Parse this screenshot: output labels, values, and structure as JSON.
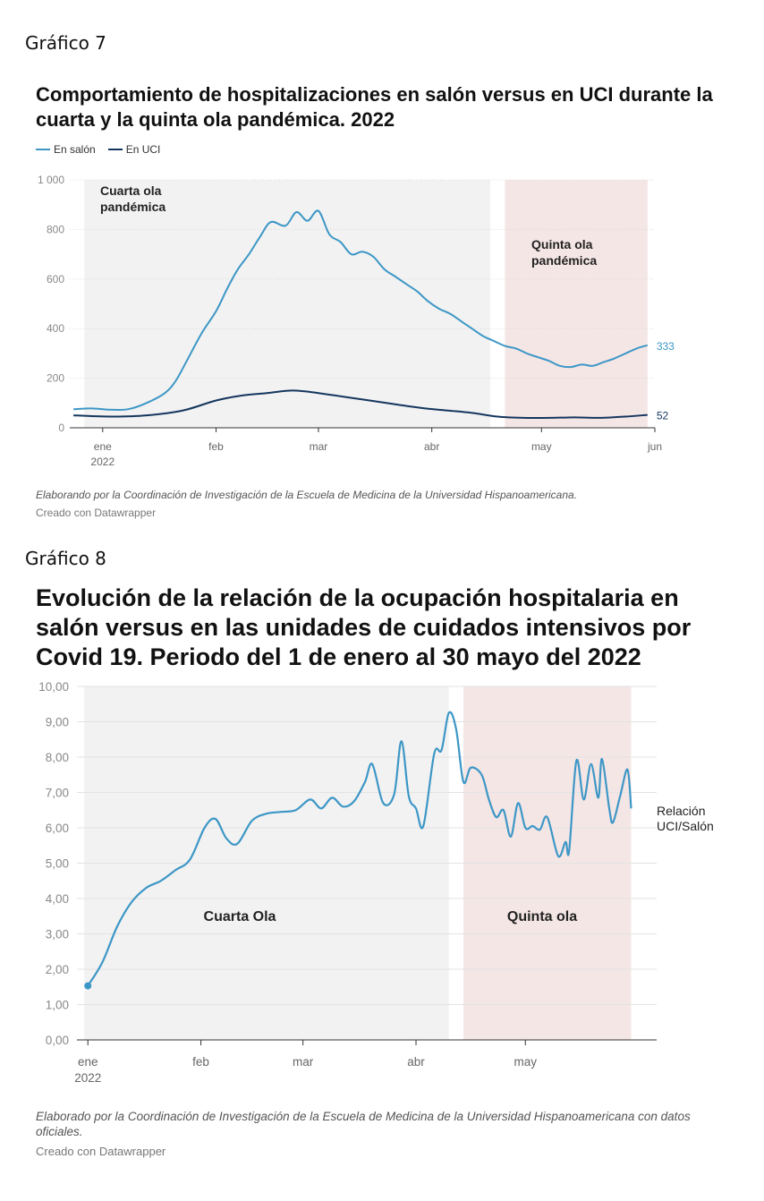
{
  "figure7": {
    "label": "Gráfico 7",
    "title": "Comportamiento de hospitalizaciones en salón versus en UCI durante la cuarta y la quinta ola pandémica. 2022",
    "legend": [
      {
        "name": "En salón",
        "color": "#3d97c6"
      },
      {
        "name": "En UCI",
        "color": "#15365e"
      }
    ],
    "note": "Elaborando por la Coordinación de Investigación de la Escuela de Medicina de la Universidad Hispanoamericana.",
    "credit": "Creado con Datawrapper"
  },
  "figure8": {
    "label": "Gráfico 8",
    "title": "Evolución de la relación de la ocupación hospitalaria en salón versus en las unidades de cuidados intensivos por Covid 19. Periodo del 1 de enero al 30 mayo del 2022",
    "note": "Elaborado por la Coordinación de Investigación de la Escuela de Medicina de la Universidad Hispanoamericana con datos oficiales.",
    "credit": "Creado con Datawrapper"
  },
  "chart_data": [
    {
      "type": "line",
      "xlabel": "",
      "ylabel": "",
      "ylim": [
        0,
        1000
      ],
      "x_ticks": [
        "ene\n2022",
        "feb",
        "mar",
        "abr",
        "may",
        "jun"
      ],
      "y_ticks": [
        "0",
        "200",
        "400",
        "600",
        "800",
        "1 000"
      ],
      "grid": true,
      "legend_position": "top-left",
      "bands": [
        {
          "label": "Cuarta ola pandémica",
          "from": "2021-12-27",
          "to": "2022-04-17",
          "color": "#f2f2f2"
        },
        {
          "label": "Quinta ola pandémica",
          "from": "2022-04-21",
          "to": "2022-05-30",
          "color": "#f5e6e6"
        }
      ],
      "series": [
        {
          "name": "En salón",
          "color": "#3d97c6",
          "end_label": "333",
          "points": [
            [
              "2021-12-24",
              75
            ],
            [
              "2021-12-29",
              78
            ],
            [
              "2022-01-03",
              73
            ],
            [
              "2022-01-08",
              75
            ],
            [
              "2022-01-13",
              100
            ],
            [
              "2022-01-18",
              140
            ],
            [
              "2022-01-21",
              190
            ],
            [
              "2022-01-24",
              270
            ],
            [
              "2022-01-28",
              380
            ],
            [
              "2022-02-01",
              470
            ],
            [
              "2022-02-04",
              560
            ],
            [
              "2022-02-07",
              640
            ],
            [
              "2022-02-10",
              700
            ],
            [
              "2022-02-13",
              770
            ],
            [
              "2022-02-16",
              830
            ],
            [
              "2022-02-20",
              815
            ],
            [
              "2022-02-23",
              870
            ],
            [
              "2022-02-26",
              835
            ],
            [
              "2022-03-01",
              875
            ],
            [
              "2022-03-04",
              780
            ],
            [
              "2022-03-07",
              750
            ],
            [
              "2022-03-10",
              700
            ],
            [
              "2022-03-13",
              710
            ],
            [
              "2022-03-16",
              690
            ],
            [
              "2022-03-19",
              640
            ],
            [
              "2022-03-22",
              610
            ],
            [
              "2022-03-25",
              580
            ],
            [
              "2022-03-28",
              550
            ],
            [
              "2022-03-31",
              510
            ],
            [
              "2022-04-03",
              480
            ],
            [
              "2022-04-06",
              460
            ],
            [
              "2022-04-09",
              430
            ],
            [
              "2022-04-12",
              400
            ],
            [
              "2022-04-15",
              370
            ],
            [
              "2022-04-18",
              350
            ],
            [
              "2022-04-21",
              330
            ],
            [
              "2022-04-24",
              320
            ],
            [
              "2022-04-27",
              300
            ],
            [
              "2022-04-30",
              285
            ],
            [
              "2022-05-03",
              270
            ],
            [
              "2022-05-06",
              250
            ],
            [
              "2022-05-09",
              245
            ],
            [
              "2022-05-12",
              255
            ],
            [
              "2022-05-15",
              250
            ],
            [
              "2022-05-18",
              265
            ],
            [
              "2022-05-21",
              280
            ],
            [
              "2022-05-24",
              300
            ],
            [
              "2022-05-27",
              320
            ],
            [
              "2022-05-30",
              333
            ]
          ]
        },
        {
          "name": "En UCI",
          "color": "#15365e",
          "end_label": "52",
          "points": [
            [
              "2021-12-24",
              50
            ],
            [
              "2022-01-03",
              45
            ],
            [
              "2022-01-13",
              50
            ],
            [
              "2022-01-23",
              70
            ],
            [
              "2022-02-01",
              110
            ],
            [
              "2022-02-08",
              130
            ],
            [
              "2022-02-15",
              140
            ],
            [
              "2022-02-22",
              150
            ],
            [
              "2022-03-01",
              140
            ],
            [
              "2022-03-08",
              125
            ],
            [
              "2022-03-15",
              110
            ],
            [
              "2022-03-22",
              95
            ],
            [
              "2022-03-29",
              80
            ],
            [
              "2022-04-05",
              70
            ],
            [
              "2022-04-12",
              60
            ],
            [
              "2022-04-19",
              45
            ],
            [
              "2022-04-26",
              40
            ],
            [
              "2022-05-03",
              40
            ],
            [
              "2022-05-10",
              42
            ],
            [
              "2022-05-17",
              40
            ],
            [
              "2022-05-24",
              45
            ],
            [
              "2022-05-30",
              52
            ]
          ]
        }
      ]
    },
    {
      "type": "line",
      "xlabel": "",
      "ylabel": "",
      "ylim": [
        0,
        10
      ],
      "x_ticks": [
        "ene\n2022",
        "feb",
        "mar",
        "abr",
        "may"
      ],
      "y_ticks": [
        "0,00",
        "1,00",
        "2,00",
        "3,00",
        "4,00",
        "5,00",
        "6,00",
        "7,00",
        "8,00",
        "9,00",
        "10,00"
      ],
      "grid": true,
      "bands": [
        {
          "label": "Cuarta Ola",
          "from": "2021-12-31",
          "to": "2022-04-10",
          "color": "#f2f2f2"
        },
        {
          "label": "Quinta ola",
          "from": "2022-04-14",
          "to": "2022-05-30",
          "color": "#f5e6e6"
        }
      ],
      "series": [
        {
          "name": "Relación UCI/Salón",
          "color": "#3d97c6",
          "points": [
            [
              "2022-01-01",
              1.53
            ],
            [
              "2022-01-05",
              2.2
            ],
            [
              "2022-01-09",
              3.2
            ],
            [
              "2022-01-13",
              3.9
            ],
            [
              "2022-01-17",
              4.3
            ],
            [
              "2022-01-21",
              4.5
            ],
            [
              "2022-01-25",
              4.8
            ],
            [
              "2022-01-29",
              5.1
            ],
            [
              "2022-02-02",
              6.0
            ],
            [
              "2022-02-05",
              6.25
            ],
            [
              "2022-02-08",
              5.7
            ],
            [
              "2022-02-11",
              5.55
            ],
            [
              "2022-02-15",
              6.2
            ],
            [
              "2022-02-19",
              6.4
            ],
            [
              "2022-02-23",
              6.45
            ],
            [
              "2022-02-27",
              6.5
            ],
            [
              "2022-03-03",
              6.8
            ],
            [
              "2022-03-06",
              6.55
            ],
            [
              "2022-03-09",
              6.85
            ],
            [
              "2022-03-12",
              6.6
            ],
            [
              "2022-03-15",
              6.75
            ],
            [
              "2022-03-18",
              7.3
            ],
            [
              "2022-03-20",
              7.8
            ],
            [
              "2022-03-23",
              6.7
            ],
            [
              "2022-03-26",
              6.95
            ],
            [
              "2022-03-28",
              8.45
            ],
            [
              "2022-03-30",
              6.9
            ],
            [
              "2022-04-01",
              6.55
            ],
            [
              "2022-04-03",
              6.05
            ],
            [
              "2022-04-06",
              8.1
            ],
            [
              "2022-04-08",
              8.2
            ],
            [
              "2022-04-10",
              9.25
            ],
            [
              "2022-04-12",
              8.8
            ],
            [
              "2022-04-14",
              7.3
            ],
            [
              "2022-04-16",
              7.7
            ],
            [
              "2022-04-19",
              7.5
            ],
            [
              "2022-04-21",
              6.8
            ],
            [
              "2022-04-23",
              6.3
            ],
            [
              "2022-04-25",
              6.5
            ],
            [
              "2022-04-27",
              5.75
            ],
            [
              "2022-04-29",
              6.7
            ],
            [
              "2022-05-01",
              6.0
            ],
            [
              "2022-05-03",
              6.05
            ],
            [
              "2022-05-05",
              5.95
            ],
            [
              "2022-05-07",
              6.3
            ],
            [
              "2022-05-10",
              5.2
            ],
            [
              "2022-05-12",
              5.6
            ],
            [
              "2022-05-13",
              5.35
            ],
            [
              "2022-05-15",
              7.9
            ],
            [
              "2022-05-17",
              6.8
            ],
            [
              "2022-05-19",
              7.8
            ],
            [
              "2022-05-21",
              6.85
            ],
            [
              "2022-05-22",
              7.95
            ],
            [
              "2022-05-24",
              6.55
            ],
            [
              "2022-05-25",
              6.15
            ],
            [
              "2022-05-27",
              6.9
            ],
            [
              "2022-05-29",
              7.65
            ],
            [
              "2022-05-30",
              6.55
            ]
          ]
        }
      ]
    }
  ]
}
